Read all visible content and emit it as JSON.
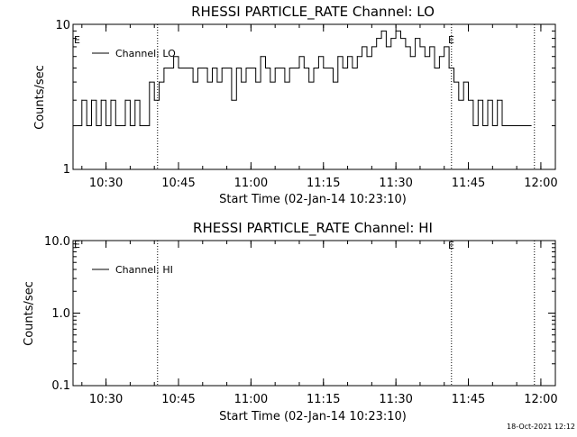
{
  "chart_data": [
    {
      "type": "line",
      "title": "RHESSI PARTICLE_RATE Channel: LO",
      "xlabel": "Start Time (02-Jan-14 10:23:10)",
      "ylabel": "Counts/sec",
      "yscale": "log",
      "ylim": [
        1,
        10
      ],
      "xlim_minutes": [
        10.38,
        12.03
      ],
      "y_ticks": [
        "10",
        "1"
      ],
      "x_ticks": [
        "10:30",
        "10:45",
        "11:00",
        "11:15",
        "11:30",
        "11:45",
        "12:00"
      ],
      "legend": "Channel: LO",
      "legend_position": "top-left",
      "eclipse_marks": [
        "E",
        "E"
      ],
      "vlines": [
        "10:40:40",
        "11:41:30",
        "11:58:40"
      ],
      "series": [
        {
          "name": "Channel: LO",
          "x": [
            "10:24",
            "10:25",
            "10:26",
            "10:27",
            "10:28",
            "10:29",
            "10:30",
            "10:31",
            "10:32",
            "10:33",
            "10:34",
            "10:35",
            "10:36",
            "10:37",
            "10:38",
            "10:39",
            "10:40",
            "10:41",
            "10:42",
            "10:43",
            "10:44",
            "10:45",
            "10:46",
            "10:47",
            "10:48",
            "10:49",
            "10:50",
            "10:51",
            "10:52",
            "10:53",
            "10:54",
            "10:55",
            "10:56",
            "10:57",
            "10:58",
            "10:59",
            "11:00",
            "11:01",
            "11:02",
            "11:03",
            "11:04",
            "11:05",
            "11:06",
            "11:07",
            "11:08",
            "11:09",
            "11:10",
            "11:11",
            "11:12",
            "11:13",
            "11:14",
            "11:15",
            "11:16",
            "11:17",
            "11:18",
            "11:19",
            "11:20",
            "11:21",
            "11:22",
            "11:23",
            "11:24",
            "11:25",
            "11:26",
            "11:27",
            "11:28",
            "11:29",
            "11:30",
            "11:31",
            "11:32",
            "11:33",
            "11:34",
            "11:35",
            "11:36",
            "11:37",
            "11:38",
            "11:39",
            "11:40",
            "11:41",
            "11:42",
            "11:43",
            "11:44",
            "11:45",
            "11:46",
            "11:47",
            "11:48",
            "11:49",
            "11:50",
            "11:51",
            "11:52",
            "11:53",
            "11:54",
            "11:55",
            "11:56",
            "11:57",
            "11:58"
          ],
          "y": [
            2,
            3,
            2,
            3,
            2,
            3,
            2,
            3,
            2,
            2,
            3,
            2,
            3,
            2,
            2,
            4,
            3,
            4,
            5,
            5,
            6,
            5,
            5,
            5,
            4,
            5,
            5,
            4,
            5,
            4,
            5,
            5,
            3,
            5,
            4,
            5,
            5,
            4,
            6,
            5,
            4,
            5,
            5,
            4,
            5,
            5,
            6,
            5,
            4,
            5,
            6,
            5,
            5,
            4,
            6,
            5,
            6,
            5,
            6,
            7,
            6,
            7,
            8,
            9,
            7,
            8,
            9,
            8,
            7,
            6,
            8,
            7,
            6,
            7,
            5,
            6,
            7,
            5,
            4,
            3,
            4,
            3,
            2,
            3,
            2,
            3,
            2,
            3,
            2,
            2,
            2,
            2,
            2,
            2,
            2
          ]
        }
      ]
    },
    {
      "type": "line",
      "title": "RHESSI PARTICLE_RATE Channel: HI",
      "xlabel": "Start Time (02-Jan-14 10:23:10)",
      "ylabel": "Counts/sec",
      "yscale": "log",
      "ylim": [
        0.1,
        10
      ],
      "y_ticks": [
        "10.0",
        "1.0",
        "0.1"
      ],
      "x_ticks": [
        "10:30",
        "10:45",
        "11:00",
        "11:15",
        "11:30",
        "11:45",
        "12:00"
      ],
      "legend": "Channel: HI",
      "legend_position": "top-left",
      "eclipse_marks": [
        "E",
        "E"
      ],
      "vlines": [
        "10:40:40",
        "11:41:30",
        "11:58:40"
      ],
      "series": [
        {
          "name": "Channel: HI",
          "x": [],
          "y": []
        }
      ]
    }
  ],
  "footer": {
    "timestamp": "18-Oct-2021 12:12"
  }
}
